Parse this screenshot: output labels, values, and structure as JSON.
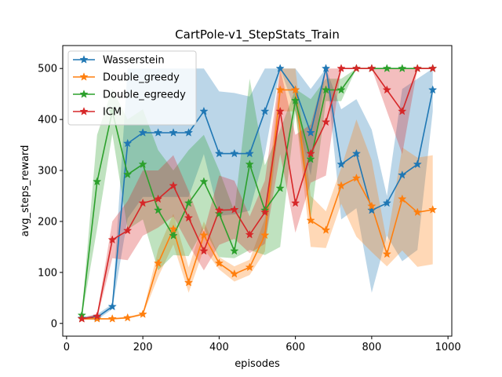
{
  "chart_data": {
    "type": "line",
    "title": "CartPole-v1_StepStats_Train",
    "xlabel": "episodes",
    "ylabel": "avg_steps_reward",
    "xlim": [
      -10,
      1010
    ],
    "ylim": [
      -25,
      545
    ],
    "xticks": [
      0,
      200,
      400,
      600,
      800,
      1000
    ],
    "yticks": [
      0,
      100,
      200,
      300,
      400,
      500
    ],
    "grid": false,
    "legend_position": "top-left",
    "series": [
      {
        "name": "Wasserstein",
        "color": "#1f77b4",
        "marker": "star",
        "x": [
          40,
          80,
          120,
          160,
          200,
          240,
          280,
          320,
          360,
          400,
          440,
          480,
          520,
          560,
          600,
          640,
          680,
          720,
          760,
          800,
          840,
          880,
          920,
          960
        ],
        "y": [
          10,
          12,
          33,
          353,
          374,
          374,
          374,
          374,
          416,
          333,
          333,
          333,
          416,
          500,
          458,
          374,
          500,
          312,
          333,
          222,
          236,
          291,
          312,
          458
        ],
        "upper": [
          12,
          18,
          38,
          500,
          500,
          500,
          500,
          500,
          500,
          455,
          452,
          445,
          500,
          500,
          500,
          460,
          500,
          420,
          440,
          380,
          250,
          460,
          480,
          500
        ],
        "lower": [
          8,
          7,
          28,
          206,
          248,
          248,
          248,
          248,
          332,
          211,
          214,
          221,
          332,
          500,
          416,
          290,
          500,
          204,
          226,
          60,
          172,
          122,
          144,
          416
        ]
      },
      {
        "name": "Double_greedy",
        "color": "#ff7f0e",
        "marker": "star",
        "x": [
          40,
          80,
          120,
          160,
          200,
          240,
          280,
          320,
          360,
          400,
          440,
          480,
          520,
          560,
          600,
          640,
          680,
          720,
          760,
          800,
          840,
          880,
          920,
          960
        ],
        "y": [
          9,
          9,
          9,
          11,
          18,
          118,
          185,
          80,
          173,
          118,
          97,
          110,
          173,
          458,
          458,
          202,
          183,
          270,
          285,
          230,
          136,
          244,
          218,
          223
        ],
        "upper": [
          10,
          10,
          10,
          13,
          20,
          145,
          215,
          110,
          200,
          130,
          112,
          125,
          205,
          500,
          500,
          250,
          220,
          305,
          400,
          320,
          160,
          345,
          325,
          330
        ],
        "lower": [
          8,
          8,
          8,
          9,
          16,
          91,
          155,
          60,
          146,
          106,
          82,
          95,
          141,
          416,
          416,
          150,
          148,
          235,
          170,
          140,
          112,
          143,
          111,
          116
        ]
      },
      {
        "name": "Double_egreedy",
        "color": "#2ca02c",
        "marker": "star",
        "x": [
          40,
          80,
          120,
          160,
          200,
          240,
          280,
          320,
          360,
          400,
          440,
          480,
          520,
          560,
          600,
          640,
          680,
          720,
          760,
          800,
          840,
          880,
          920,
          960
        ],
        "y": [
          16,
          278,
          416,
          292,
          312,
          222,
          172,
          236,
          278,
          215,
          142,
          312,
          222,
          265,
          437,
          322,
          458,
          458,
          500,
          500,
          500,
          500,
          500,
          500
        ],
        "upper": [
          20,
          370,
          460,
          400,
          420,
          340,
          300,
          340,
          370,
          300,
          220,
          480,
          310,
          380,
          460,
          440,
          480,
          480,
          500,
          500,
          500,
          500,
          500,
          500
        ],
        "lower": [
          12,
          186,
          372,
          184,
          204,
          104,
          134,
          132,
          186,
          130,
          128,
          144,
          134,
          150,
          414,
          204,
          436,
          436,
          500,
          500,
          500,
          500,
          500,
          500
        ]
      },
      {
        "name": "ICM",
        "color": "#d62728",
        "marker": "star",
        "x": [
          40,
          80,
          120,
          160,
          200,
          240,
          280,
          320,
          360,
          400,
          440,
          480,
          520,
          560,
          600,
          640,
          680,
          720,
          760,
          800,
          840,
          880,
          920,
          960
        ],
        "y": [
          9,
          14,
          164,
          182,
          236,
          244,
          270,
          207,
          142,
          222,
          223,
          174,
          218,
          416,
          236,
          333,
          395,
          500,
          500,
          500,
          458,
          416,
          500,
          500
        ],
        "upper": [
          11,
          18,
          200,
          240,
          300,
          300,
          330,
          260,
          180,
          290,
          280,
          210,
          280,
          500,
          370,
          390,
          500,
          500,
          500,
          500,
          500,
          500,
          500,
          500
        ],
        "lower": [
          7,
          10,
          128,
          124,
          172,
          188,
          210,
          154,
          104,
          154,
          166,
          138,
          156,
          332,
          178,
          276,
          290,
          500,
          500,
          500,
          416,
          332,
          500,
          500
        ]
      }
    ]
  }
}
